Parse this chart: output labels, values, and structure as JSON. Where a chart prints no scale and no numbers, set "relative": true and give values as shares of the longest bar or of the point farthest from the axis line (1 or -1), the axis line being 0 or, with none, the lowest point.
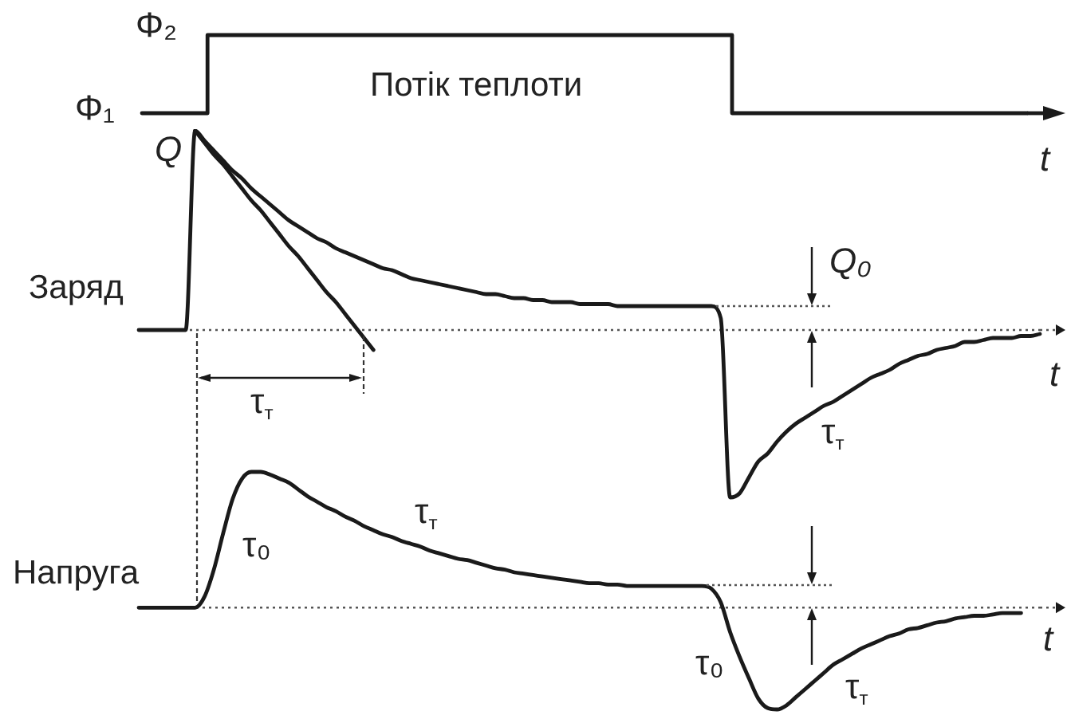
{
  "chart_data": [
    {
      "type": "step",
      "relative": true,
      "xlabel": "t",
      "categories": [
        null,
        null,
        null,
        null,
        null,
        null,
        null,
        null,
        null,
        null,
        null,
        null,
        null,
        null,
        null,
        null,
        null,
        null,
        null,
        null,
        null,
        null,
        null,
        null,
        null,
        null,
        null,
        null
      ],
      "series": [
        {
          "name": "Потік теплоти",
          "color": "#1a1a1a",
          "values": [
            0,
            0,
            1,
            1,
            1,
            1,
            1,
            1,
            1,
            1,
            1,
            1,
            1,
            1,
            1,
            1,
            1,
            1,
            0,
            0,
            0,
            0,
            0,
            0,
            0,
            0,
            0,
            0
          ]
        }
      ],
      "annotations": [
        "Φ₂",
        "Φ₁"
      ]
    },
    {
      "type": "line",
      "relative": true,
      "xlabel": "t",
      "ylabel": "Заряд",
      "categories": [
        null,
        null,
        null,
        null,
        null,
        null,
        null,
        null,
        null,
        null,
        null,
        null,
        null,
        null,
        null,
        null,
        null,
        null,
        null,
        null,
        null,
        null,
        null,
        null,
        null,
        null,
        null,
        null,
        null,
        null,
        null,
        null,
        null,
        null,
        null,
        null,
        null,
        null,
        null,
        null,
        null,
        null,
        null,
        null,
        null,
        null,
        null,
        null,
        null,
        null,
        null,
        null,
        null,
        null,
        null,
        null,
        null,
        null,
        null,
        null,
        null,
        null,
        null,
        null,
        null,
        null,
        null,
        null,
        null,
        null,
        null,
        null,
        null,
        null,
        null,
        null,
        null,
        null,
        null,
        null,
        null,
        null,
        null,
        null,
        null,
        null,
        null,
        null,
        null,
        null,
        null,
        null,
        null,
        null,
        null,
        null,
        null
      ],
      "series": [
        {
          "color": "#1a1a1a",
          "values": [
            0,
            0,
            0,
            0,
            0,
            0,
            1,
            0.95,
            0.9,
            0.85,
            0.8,
            0.76,
            0.71,
            0.67,
            0.63,
            0.59,
            0.55,
            0.52,
            0.49,
            0.46,
            0.44,
            0.41,
            0.39,
            0.37,
            0.35,
            0.33,
            0.31,
            0.3,
            0.28,
            0.26,
            0.25,
            0.24,
            0.23,
            0.22,
            0.21,
            0.2,
            0.19,
            0.18,
            0.18,
            0.17,
            0.16,
            0.16,
            0.15,
            0.15,
            0.14,
            0.14,
            0.14,
            0.13,
            0.13,
            0.13,
            0.13,
            0.12,
            0.12,
            0.12,
            0.12,
            0.12,
            0.12,
            0.12,
            0.12,
            0.12,
            0.12,
            0.12,
            0.06,
            -0.84,
            -0.82,
            -0.74,
            -0.66,
            -0.62,
            -0.56,
            -0.51,
            -0.47,
            -0.44,
            -0.41,
            -0.38,
            -0.36,
            -0.33,
            -0.3,
            -0.27,
            -0.24,
            -0.22,
            -0.2,
            -0.17,
            -0.15,
            -0.13,
            -0.12,
            -0.1,
            -0.09,
            -0.08,
            -0.06,
            -0.06,
            -0.05,
            -0.04,
            -0.04,
            -0.04,
            -0.03,
            -0.03,
            -0.02
          ]
        },
        {
          "color": "#1a1a1a",
          "values": [
            null,
            null,
            null,
            null,
            null,
            null,
            1,
            0.94,
            0.88,
            0.83,
            0.77,
            0.71,
            0.65,
            0.6,
            0.54,
            0.48,
            0.42,
            0.37,
            0.31,
            0.25,
            0.19,
            0.14,
            0.08,
            0.02,
            -0.04,
            -0.1,
            null,
            null,
            null,
            null,
            null,
            null,
            null,
            null,
            null,
            null,
            null,
            null,
            null,
            null,
            null,
            null,
            null,
            null,
            null,
            null,
            null,
            null,
            null,
            null,
            null,
            null,
            null,
            null,
            null,
            null,
            null,
            null,
            null,
            null,
            null,
            null,
            null,
            null,
            null,
            null,
            null,
            null,
            null,
            null,
            null,
            null,
            null,
            null,
            null,
            null,
            null,
            null,
            null,
            null,
            null,
            null,
            null,
            null,
            null,
            null,
            null,
            null,
            null,
            null,
            null,
            null,
            null,
            null,
            null,
            null,
            null
          ]
        }
      ],
      "ref_lines": [
        {
          "axis": "y",
          "value": 0,
          "line_style": "dotted",
          "color": "#555555"
        }
      ],
      "annotations": [
        "Q",
        "Q₀",
        "τ$_{т}$",
        "τ$_{т}$"
      ]
    },
    {
      "type": "line",
      "relative": true,
      "xlabel": "t",
      "ylabel": "Напруга",
      "categories": [
        null,
        null,
        null,
        null,
        null,
        null,
        null,
        null,
        null,
        null,
        null,
        null,
        null,
        null,
        null,
        null,
        null,
        null,
        null,
        null,
        null,
        null,
        null,
        null,
        null,
        null,
        null,
        null,
        null,
        null,
        null,
        null,
        null,
        null,
        null,
        null,
        null,
        null,
        null,
        null,
        null,
        null,
        null,
        null,
        null,
        null,
        null,
        null,
        null,
        null,
        null,
        null,
        null,
        null,
        null,
        null,
        null,
        null,
        null,
        null,
        null,
        null,
        null,
        null,
        null,
        null,
        null,
        null,
        null,
        null,
        null,
        null,
        null,
        null,
        null,
        null,
        null,
        null,
        null,
        null,
        null,
        null,
        null,
        null,
        null,
        null,
        null,
        null,
        null,
        null,
        null,
        null,
        null,
        null,
        null,
        null,
        null
      ],
      "series": [
        {
          "color": "#1a1a1a",
          "values": [
            0,
            0,
            0,
            0,
            0,
            0,
            0,
            0.08,
            0.28,
            0.55,
            0.8,
            0.95,
            1,
            1,
            0.98,
            0.95,
            0.92,
            0.87,
            0.82,
            0.78,
            0.74,
            0.71,
            0.67,
            0.64,
            0.6,
            0.57,
            0.54,
            0.52,
            0.49,
            0.47,
            0.45,
            0.42,
            0.4,
            0.38,
            0.36,
            0.35,
            0.33,
            0.31,
            0.29,
            0.28,
            0.26,
            0.25,
            0.24,
            0.23,
            0.22,
            0.21,
            0.2,
            0.19,
            0.18,
            0.18,
            0.17,
            0.17,
            0.16,
            0.16,
            0.16,
            0.16,
            0.16,
            0.16,
            0.16,
            0.16,
            0.16,
            0.14,
            0.04,
            -0.18,
            -0.36,
            -0.52,
            -0.67,
            -0.74,
            -0.75,
            -0.72,
            -0.66,
            -0.6,
            -0.54,
            -0.48,
            -0.42,
            -0.38,
            -0.34,
            -0.3,
            -0.27,
            -0.24,
            -0.21,
            -0.19,
            -0.16,
            -0.15,
            -0.13,
            -0.11,
            -0.1,
            -0.08,
            -0.07,
            -0.06,
            -0.06,
            -0.05,
            -0.04,
            -0.04,
            -0.04,
            null,
            null
          ]
        }
      ],
      "ref_lines": [
        {
          "axis": "y",
          "value": 0,
          "line_style": "dotted",
          "color": "#555555"
        }
      ],
      "annotations": [
        "τ₀",
        "τ$_{т}$",
        "τ₀",
        "τ$_{т}$"
      ]
    }
  ]
}
